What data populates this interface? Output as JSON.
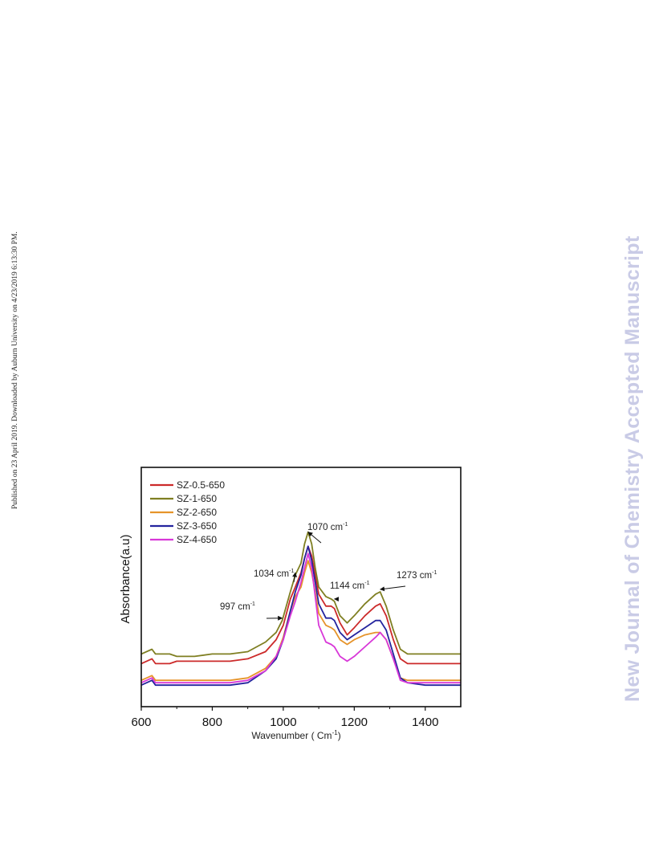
{
  "page": {
    "side_note": "Published on 23 April 2019. Downloaded by Auburn University on 4/23/2019 6:13:30 PM.",
    "watermark": "New Journal of Chemistry Accepted Manuscript"
  },
  "chart_data": {
    "type": "line",
    "title": "",
    "xlabel": "Wavenumber ( Cm",
    "xlabel_sup": "-1",
    "xlabel_suffix": ")",
    "ylabel": "Absorbance(a.u)",
    "xlim": [
      600,
      1500
    ],
    "ylim": [
      0,
      100
    ],
    "xticks": [
      600,
      800,
      1000,
      1200,
      1400
    ],
    "grid": false,
    "legend_position": "top-left",
    "series": [
      {
        "name": "SZ-0.5-650",
        "color": "#cc2a2a",
        "x": [
          600,
          630,
          640,
          660,
          680,
          700,
          750,
          800,
          850,
          900,
          950,
          980,
          1000,
          1020,
          1034,
          1050,
          1060,
          1070,
          1080,
          1090,
          1100,
          1120,
          1135,
          1144,
          1160,
          1180,
          1200,
          1230,
          1260,
          1273,
          1290,
          1310,
          1330,
          1350,
          1400,
          1450,
          1500
        ],
        "y": [
          18,
          20,
          18,
          18,
          18,
          19,
          19,
          19,
          19,
          20,
          23,
          28,
          34,
          45,
          50,
          56,
          62,
          67,
          63,
          55,
          47,
          42,
          42,
          41,
          35,
          30,
          33,
          38,
          42,
          43,
          38,
          28,
          20,
          18,
          18,
          18,
          18
        ]
      },
      {
        "name": "SZ-1-650",
        "color": "#7f7f22",
        "x": [
          600,
          630,
          640,
          660,
          680,
          700,
          750,
          800,
          850,
          900,
          950,
          980,
          997,
          1020,
          1034,
          1050,
          1060,
          1070,
          1080,
          1090,
          1100,
          1120,
          1135,
          1144,
          1160,
          1180,
          1200,
          1230,
          1260,
          1273,
          1290,
          1310,
          1330,
          1350,
          1400,
          1450,
          1500
        ],
        "y": [
          22,
          24,
          22,
          22,
          22,
          21,
          21,
          22,
          22,
          23,
          27,
          31,
          36,
          48,
          55,
          60,
          68,
          73,
          68,
          58,
          50,
          46,
          45,
          44,
          38,
          35,
          38,
          43,
          47,
          48,
          42,
          32,
          24,
          22,
          22,
          22,
          22
        ]
      },
      {
        "name": "SZ-2-650",
        "color": "#e6942a",
        "x": [
          600,
          630,
          640,
          660,
          680,
          700,
          750,
          800,
          850,
          900,
          950,
          980,
          1000,
          1020,
          1034,
          1050,
          1060,
          1070,
          1080,
          1090,
          1100,
          1120,
          1135,
          1144,
          1160,
          1180,
          1200,
          1230,
          1260,
          1273,
          1290,
          1310,
          1330,
          1350,
          1400,
          1450,
          1500
        ],
        "y": [
          11,
          13,
          11,
          11,
          11,
          11,
          11,
          11,
          11,
          12,
          16,
          21,
          29,
          40,
          46,
          50,
          56,
          61,
          56,
          48,
          39,
          34,
          33,
          32,
          28,
          26,
          28,
          30,
          31,
          31,
          28,
          20,
          12,
          11,
          11,
          11,
          11
        ]
      },
      {
        "name": "SZ-3-650",
        "color": "#24249e",
        "x": [
          600,
          630,
          640,
          660,
          680,
          700,
          750,
          800,
          850,
          900,
          950,
          980,
          1000,
          1020,
          1034,
          1050,
          1060,
          1070,
          1080,
          1090,
          1100,
          1120,
          1135,
          1144,
          1160,
          1180,
          1200,
          1230,
          1260,
          1273,
          1290,
          1310,
          1330,
          1350,
          1400,
          1450,
          1500
        ],
        "y": [
          9,
          11,
          9,
          9,
          9,
          9,
          9,
          9,
          9,
          10,
          15,
          20,
          28,
          40,
          48,
          55,
          62,
          67,
          61,
          52,
          43,
          37,
          37,
          36,
          31,
          28,
          30,
          33,
          36,
          36,
          32,
          22,
          12,
          10,
          9,
          9,
          9
        ]
      },
      {
        "name": "SZ-4-650",
        "color": "#d838d8",
        "x": [
          600,
          630,
          640,
          660,
          680,
          700,
          750,
          800,
          850,
          900,
          950,
          980,
          1000,
          1020,
          1034,
          1050,
          1060,
          1070,
          1080,
          1090,
          1100,
          1120,
          1135,
          1144,
          1160,
          1180,
          1200,
          1230,
          1260,
          1273,
          1290,
          1310,
          1330,
          1350,
          1400,
          1450,
          1500
        ],
        "y": [
          10,
          12,
          10,
          10,
          10,
          10,
          10,
          10,
          10,
          11,
          15,
          21,
          28,
          38,
          44,
          52,
          58,
          64,
          58,
          46,
          34,
          27,
          26,
          25,
          21,
          19,
          21,
          25,
          29,
          31,
          28,
          20,
          11,
          10,
          10,
          10,
          10
        ]
      }
    ],
    "annotations": [
      {
        "label": "997 cm",
        "sup": "-1",
        "point_x": 997,
        "point_y": 37
      },
      {
        "label": "1034 cm",
        "sup": "-1",
        "point_x": 1034,
        "point_y": 56
      },
      {
        "label": "1070 cm",
        "sup": "-1",
        "point_x": 1070,
        "point_y": 73
      },
      {
        "label": "1144 cm",
        "sup": "-1",
        "point_x": 1144,
        "point_y": 45
      },
      {
        "label": "1273 cm",
        "sup": "-1",
        "point_x": 1273,
        "point_y": 49
      }
    ]
  }
}
